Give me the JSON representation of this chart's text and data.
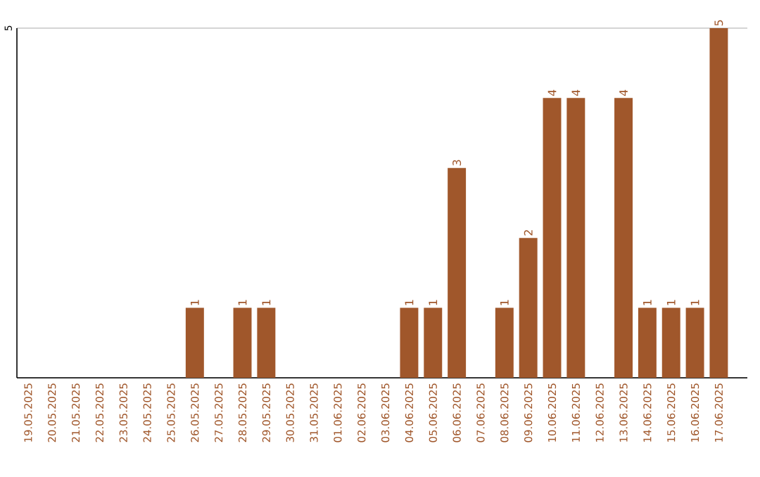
{
  "chart_data": {
    "type": "bar",
    "categories": [
      "19.05.2025",
      "20.05.2025",
      "21.05.2025",
      "22.05.2025",
      "23.05.2025",
      "24.05.2025",
      "25.05.2025",
      "26.05.2025",
      "27.05.2025",
      "28.05.2025",
      "29.05.2025",
      "30.05.2025",
      "31.05.2025",
      "01.06.2025",
      "02.06.2025",
      "03.06.2025",
      "04.06.2025",
      "05.06.2025",
      "06.06.2025",
      "07.06.2025",
      "08.06.2025",
      "09.06.2025",
      "10.06.2025",
      "11.06.2025",
      "12.06.2025",
      "13.06.2025",
      "14.06.2025",
      "15.06.2025",
      "16.06.2025",
      "17.06.2025"
    ],
    "values": [
      0,
      0,
      0,
      0,
      0,
      0,
      0,
      1,
      0,
      1,
      1,
      0,
      0,
      0,
      0,
      0,
      1,
      1,
      3,
      0,
      1,
      2,
      4,
      4,
      0,
      4,
      1,
      1,
      1,
      5
    ],
    "value_labels": [
      null,
      null,
      null,
      null,
      null,
      null,
      null,
      "1",
      null,
      "1",
      "1",
      null,
      null,
      null,
      null,
      null,
      "1",
      "1",
      "3",
      null,
      "1",
      "2",
      "4",
      "4",
      null,
      "4",
      "1",
      "1",
      "1",
      "5"
    ],
    "color": "#a0572b",
    "ylim": [
      0,
      5
    ],
    "yticks": [
      {
        "value": 0,
        "label": null
      },
      5
    ],
    "grid": "y"
  }
}
